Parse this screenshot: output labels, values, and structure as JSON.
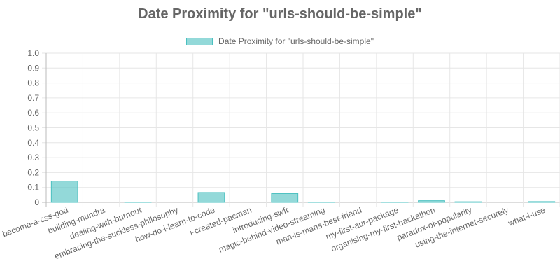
{
  "chart_data": {
    "type": "bar",
    "title": "Date Proximity for \"urls-should-be-simple\"",
    "xlabel": "",
    "ylabel": "",
    "legend_position": "top",
    "grid": true,
    "ylim": [
      0,
      1.0
    ],
    "yticks": [
      "1.0",
      "0.9",
      "0.8",
      "0.7",
      "0.6",
      "0.5",
      "0.4",
      "0.3",
      "0.2",
      "0.1",
      "0"
    ],
    "categories": [
      "become-a-css-god",
      "building-mundra",
      "dealing-with-burnout",
      "embracing-the-suckless-philosophy",
      "how-do-i-learn-to-code",
      "i-created-pacman",
      "introducing-swft",
      "magic-behind-video-streaming",
      "man-is-mans-best-friend",
      "my-first-aur-package",
      "organising-my-first-hackathon",
      "paradox-of-popularity",
      "using-the-internet-securely",
      "what-i-use"
    ],
    "series": [
      {
        "name": "Date Proximity for \"urls-should-be-simple\"",
        "color": "#4bc0c0",
        "fill": "rgba(75,192,192,0.6)",
        "values": [
          0.143,
          0,
          0.001,
          0,
          0.066,
          0,
          0.059,
          0.001,
          0,
          0.001,
          0.011,
          0.004,
          0,
          0.005
        ]
      }
    ]
  }
}
